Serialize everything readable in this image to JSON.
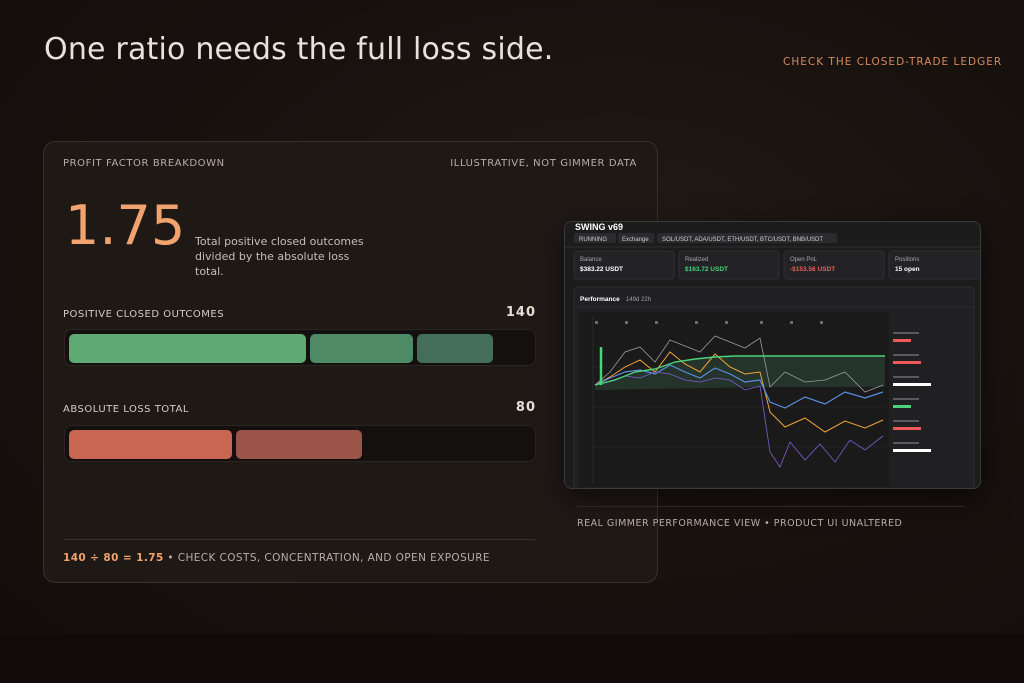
{
  "headline": "One ratio needs the full loss side.",
  "top_link": "CHECK THE CLOSED-TRADE LEDGER",
  "card": {
    "title": "PROFIT FACTOR BREAKDOWN",
    "note": "ILLUSTRATIVE, NOT GIMMER DATA",
    "ratio": "1.75",
    "ratio_desc": "Total positive closed outcomes divided by the absolute loss total.",
    "positive": {
      "label": "POSITIVE CLOSED OUTCOMES",
      "value": "140",
      "segments": [
        0.52,
        0.23,
        0.17
      ],
      "colors": [
        "#5faa74",
        "#4e8a66",
        "#446e58"
      ]
    },
    "loss": {
      "label": "ABSOLUTE LOSS TOTAL",
      "value": "80",
      "segments": [
        0.36,
        0.28
      ],
      "colors": [
        "#c96651",
        "#9a5548"
      ]
    },
    "formula": {
      "expression": "140 ÷ 80 = 1.75",
      "rest": " • CHECK COSTS, CONCENTRATION, AND OPEN EXPOSURE"
    }
  },
  "screenshot": {
    "title": "SWING v69",
    "status": "RUNNING",
    "exchange": "Exchange",
    "pairs": "SOL/USDT, ADA/USDT, ETH/USDT, BTC/USDT, BNB/USDT",
    "stats": [
      {
        "label": "Balance",
        "value": "$383.22 USDT",
        "color": "#ffffff"
      },
      {
        "label": "Realized",
        "value": "$163.72 USDT",
        "color": "#4cd27a"
      },
      {
        "label": "Open PnL",
        "value": "-$153.56 USDT",
        "color": "#ef5b5b"
      },
      {
        "label": "Positions",
        "value": "15 open",
        "color": "#ffffff"
      }
    ],
    "perf_title": "Performance",
    "perf_range": "149d 22h",
    "colors": {
      "green": "#4cd27a",
      "blue": "#5a8fe0",
      "orange": "#f2a33a",
      "purple": "#7b5fd0",
      "gray": "#9a9a9a"
    }
  },
  "caption": "REAL GIMMER PERFORMANCE VIEW • PRODUCT UI UNALTERED"
}
